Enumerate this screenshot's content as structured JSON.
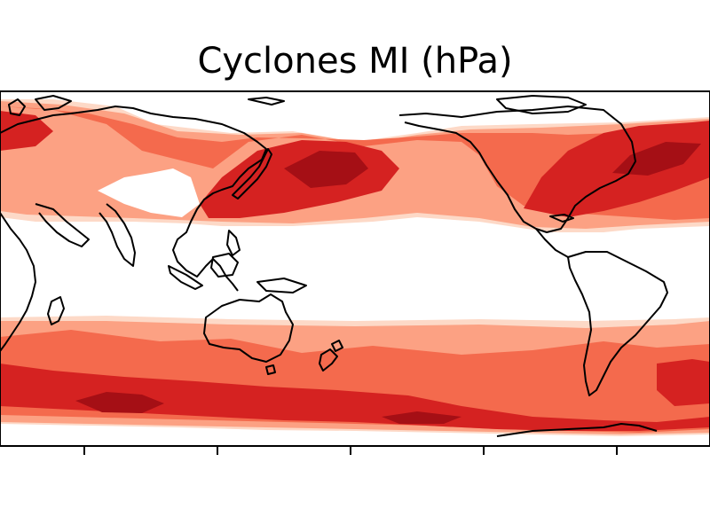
{
  "figure": {
    "title": "Cyclones MI (hPa)"
  },
  "map": {
    "projection": "PlateCarree",
    "central_longitude": 180,
    "field": "cyclone mean intensity",
    "colormap": "Reds",
    "levels_shown": 5,
    "palette": [
      "#fdd9c7",
      "#fca183",
      "#f46a4d",
      "#d52221",
      "#a50f15"
    ],
    "coastline_color": "#000000",
    "bands": {
      "northern_hemisphere": "storm track band, strongest over NW Pacific and NW Atlantic",
      "southern_hemisphere": "circumpolar storm track band, strongest south of Indian Ocean"
    }
  },
  "axes": {
    "x_tick_count": 5
  }
}
